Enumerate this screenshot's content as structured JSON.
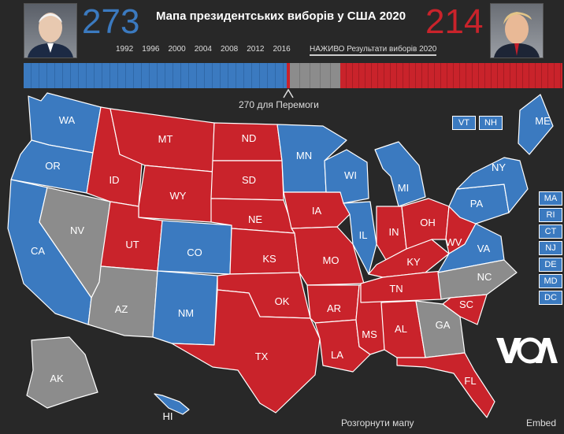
{
  "header": {
    "title": "Мапа президентських виборів у США 2020",
    "biden_votes": "273",
    "trump_votes": "214",
    "years": [
      "1992",
      "1996",
      "2000",
      "2004",
      "2008",
      "2012",
      "2016"
    ],
    "live_label": "НАЖИВО Результати виборів 2020",
    "win_threshold_label": "270 для Перемоги"
  },
  "colors": {
    "dem": "#3b7ac0",
    "rep": "#c9232b",
    "undecided": "#8c8c8c"
  },
  "states": {
    "WA": "dem",
    "OR": "dem",
    "CA": "dem",
    "NV": "undecided",
    "ID": "rep",
    "MT": "rep",
    "WY": "rep",
    "UT": "rep",
    "AZ": "undecided",
    "CO": "dem",
    "NM": "dem",
    "ND": "rep",
    "SD": "rep",
    "NE": "rep",
    "KS": "rep",
    "OK": "rep",
    "TX": "rep",
    "MN": "dem",
    "IA": "rep",
    "MO": "rep",
    "AR": "rep",
    "LA": "rep",
    "WI": "dem",
    "IL": "dem",
    "MS": "rep",
    "MI": "dem",
    "IN": "rep",
    "KY": "rep",
    "TN": "rep",
    "AL": "rep",
    "OH": "rep",
    "WV": "rep",
    "VA": "dem",
    "NC": "undecided",
    "SC": "rep",
    "GA": "undecided",
    "FL": "rep",
    "PA": "dem",
    "NY": "dem",
    "ME": "dem",
    "AK": "undecided",
    "HI": "dem"
  },
  "small_states": [
    "VT",
    "NH",
    "MA",
    "RI",
    "CT",
    "NJ",
    "DE",
    "MD",
    "DC"
  ],
  "footer": {
    "expand": "Розгорнути мапу",
    "embed": "Embed"
  }
}
